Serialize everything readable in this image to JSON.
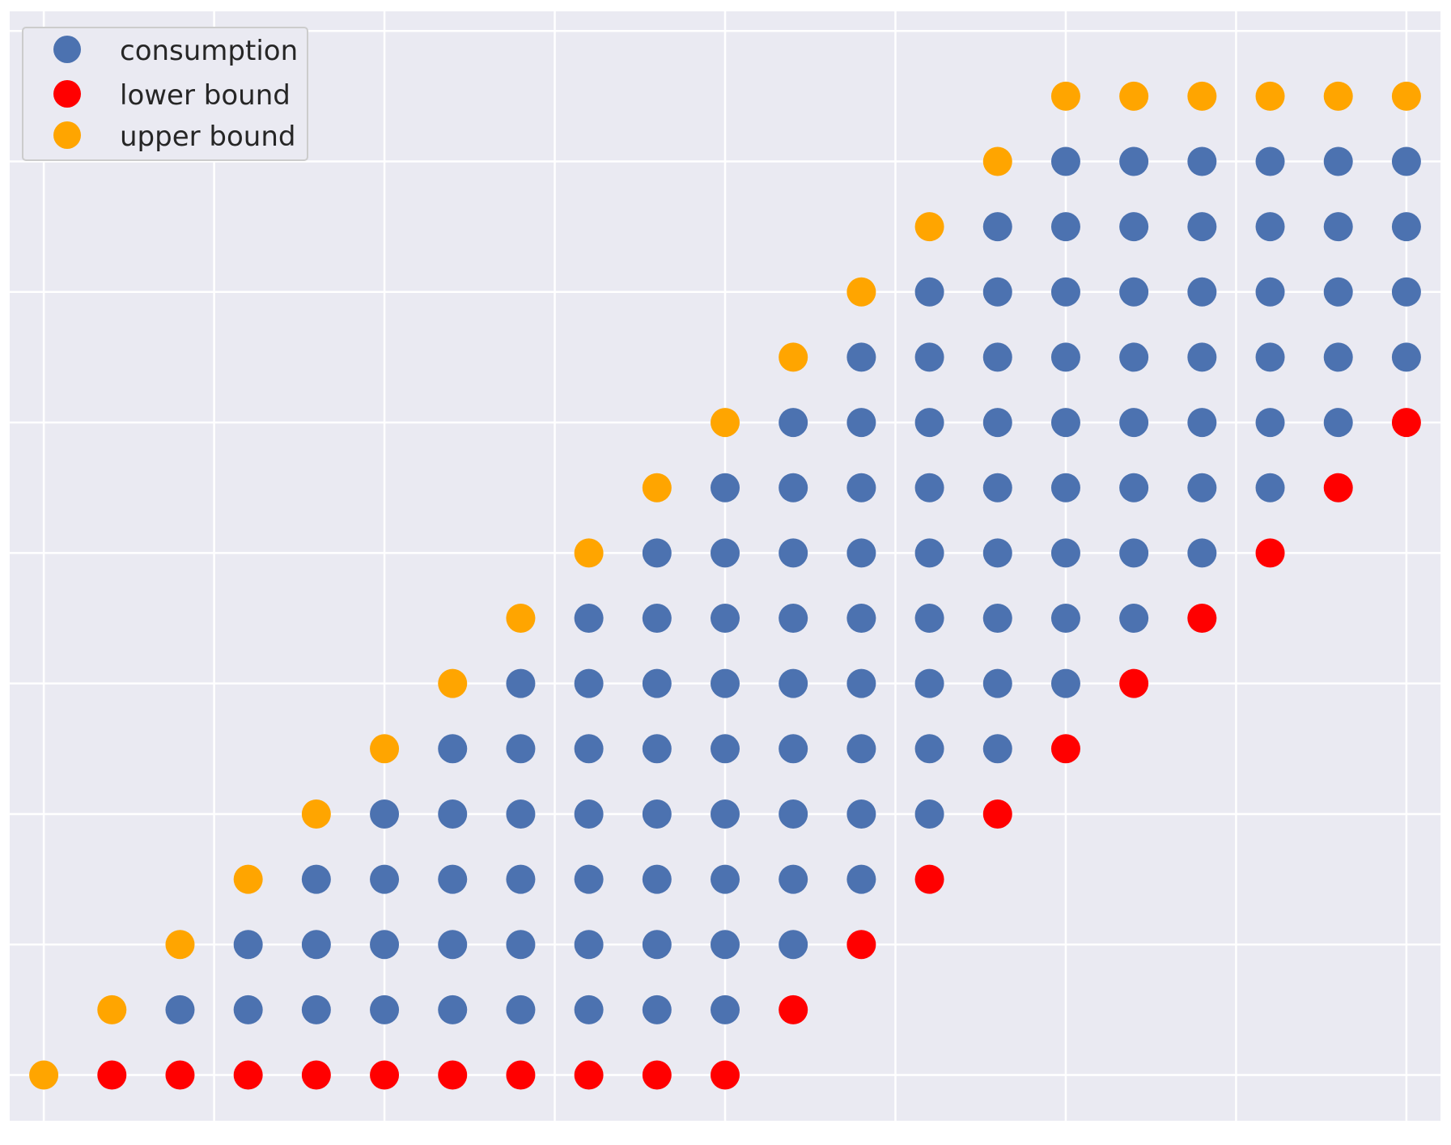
{
  "chart_data": {
    "type": "scatter",
    "title": "",
    "xlabel": "",
    "ylabel": "",
    "grid": true,
    "legend_position": "top-left",
    "xlim": [
      -0.5,
      20.5
    ],
    "ylim": [
      -0.7,
      16.3
    ],
    "series": [
      {
        "name": "consumption",
        "color": "#4c72b0",
        "points": [
          [
            2,
            1
          ],
          [
            3,
            1
          ],
          [
            4,
            1
          ],
          [
            5,
            1
          ],
          [
            6,
            1
          ],
          [
            7,
            1
          ],
          [
            8,
            1
          ],
          [
            9,
            1
          ],
          [
            10,
            1
          ],
          [
            3,
            2
          ],
          [
            4,
            2
          ],
          [
            5,
            2
          ],
          [
            6,
            2
          ],
          [
            7,
            2
          ],
          [
            8,
            2
          ],
          [
            9,
            2
          ],
          [
            10,
            2
          ],
          [
            11,
            2
          ],
          [
            4,
            3
          ],
          [
            5,
            3
          ],
          [
            6,
            3
          ],
          [
            7,
            3
          ],
          [
            8,
            3
          ],
          [
            9,
            3
          ],
          [
            10,
            3
          ],
          [
            11,
            3
          ],
          [
            12,
            3
          ],
          [
            5,
            4
          ],
          [
            6,
            4
          ],
          [
            7,
            4
          ],
          [
            8,
            4
          ],
          [
            9,
            4
          ],
          [
            10,
            4
          ],
          [
            11,
            4
          ],
          [
            12,
            4
          ],
          [
            13,
            4
          ],
          [
            6,
            5
          ],
          [
            7,
            5
          ],
          [
            8,
            5
          ],
          [
            9,
            5
          ],
          [
            10,
            5
          ],
          [
            11,
            5
          ],
          [
            12,
            5
          ],
          [
            13,
            5
          ],
          [
            14,
            5
          ],
          [
            7,
            6
          ],
          [
            8,
            6
          ],
          [
            9,
            6
          ],
          [
            10,
            6
          ],
          [
            11,
            6
          ],
          [
            12,
            6
          ],
          [
            13,
            6
          ],
          [
            14,
            6
          ],
          [
            15,
            6
          ],
          [
            8,
            7
          ],
          [
            9,
            7
          ],
          [
            10,
            7
          ],
          [
            11,
            7
          ],
          [
            12,
            7
          ],
          [
            13,
            7
          ],
          [
            14,
            7
          ],
          [
            15,
            7
          ],
          [
            16,
            7
          ],
          [
            9,
            8
          ],
          [
            10,
            8
          ],
          [
            11,
            8
          ],
          [
            12,
            8
          ],
          [
            13,
            8
          ],
          [
            14,
            8
          ],
          [
            15,
            8
          ],
          [
            16,
            8
          ],
          [
            17,
            8
          ],
          [
            10,
            9
          ],
          [
            11,
            9
          ],
          [
            12,
            9
          ],
          [
            13,
            9
          ],
          [
            14,
            9
          ],
          [
            15,
            9
          ],
          [
            16,
            9
          ],
          [
            17,
            9
          ],
          [
            18,
            9
          ],
          [
            11,
            10
          ],
          [
            12,
            10
          ],
          [
            13,
            10
          ],
          [
            14,
            10
          ],
          [
            15,
            10
          ],
          [
            16,
            10
          ],
          [
            17,
            10
          ],
          [
            18,
            10
          ],
          [
            19,
            10
          ],
          [
            12,
            11
          ],
          [
            13,
            11
          ],
          [
            14,
            11
          ],
          [
            15,
            11
          ],
          [
            16,
            11
          ],
          [
            17,
            11
          ],
          [
            18,
            11
          ],
          [
            19,
            11
          ],
          [
            20,
            11
          ],
          [
            13,
            12
          ],
          [
            14,
            12
          ],
          [
            15,
            12
          ],
          [
            16,
            12
          ],
          [
            17,
            12
          ],
          [
            18,
            12
          ],
          [
            19,
            12
          ],
          [
            20,
            12
          ],
          [
            14,
            13
          ],
          [
            15,
            13
          ],
          [
            16,
            13
          ],
          [
            17,
            13
          ],
          [
            18,
            13
          ],
          [
            19,
            13
          ],
          [
            20,
            13
          ],
          [
            15,
            14
          ],
          [
            16,
            14
          ],
          [
            17,
            14
          ],
          [
            18,
            14
          ],
          [
            19,
            14
          ],
          [
            20,
            14
          ]
        ]
      },
      {
        "name": "lower bound",
        "color": "#ff0000",
        "points": [
          [
            1,
            0
          ],
          [
            2,
            0
          ],
          [
            3,
            0
          ],
          [
            4,
            0
          ],
          [
            5,
            0
          ],
          [
            6,
            0
          ],
          [
            7,
            0
          ],
          [
            8,
            0
          ],
          [
            9,
            0
          ],
          [
            10,
            0
          ],
          [
            11,
            1
          ],
          [
            12,
            2
          ],
          [
            13,
            3
          ],
          [
            14,
            4
          ],
          [
            15,
            5
          ],
          [
            16,
            6
          ],
          [
            17,
            7
          ],
          [
            18,
            8
          ],
          [
            19,
            9
          ],
          [
            20,
            10
          ]
        ]
      },
      {
        "name": "upper bound",
        "color": "#ffa500",
        "points": [
          [
            0,
            0
          ],
          [
            1,
            1
          ],
          [
            2,
            2
          ],
          [
            3,
            3
          ],
          [
            4,
            4
          ],
          [
            5,
            5
          ],
          [
            6,
            6
          ],
          [
            7,
            7
          ],
          [
            8,
            8
          ],
          [
            9,
            9
          ],
          [
            10,
            10
          ],
          [
            11,
            11
          ],
          [
            12,
            12
          ],
          [
            13,
            13
          ],
          [
            14,
            14
          ],
          [
            15,
            15
          ],
          [
            16,
            15
          ],
          [
            17,
            15
          ],
          [
            18,
            15
          ],
          [
            19,
            15
          ],
          [
            20,
            15
          ]
        ]
      }
    ]
  },
  "style": {
    "plot_background": "#eaeaf2",
    "grid_color": "#ffffff",
    "legend_background": "#eaeaf2",
    "legend_border": "#cccccc",
    "text_color": "#262626"
  }
}
